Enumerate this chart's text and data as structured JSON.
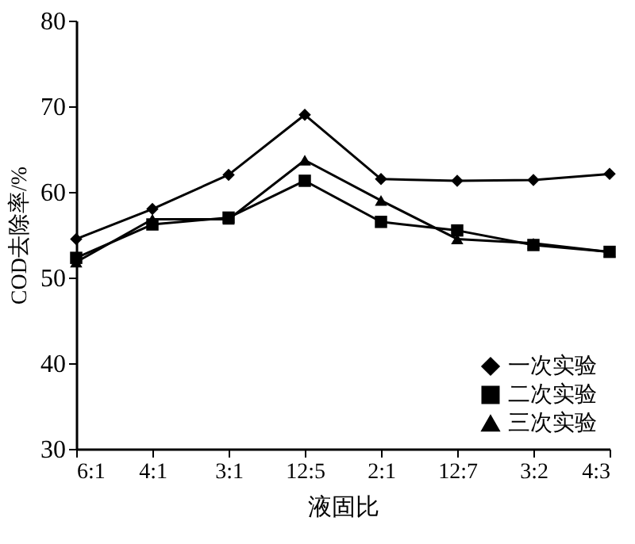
{
  "chart_data": {
    "type": "line",
    "xlabel": "液固比",
    "ylabel": "COD去除率/%",
    "categories": [
      "6:1",
      "4:1",
      "3:1",
      "12:5",
      "2:1",
      "12:7",
      "3:2",
      "4:3"
    ],
    "series": [
      {
        "name": "一次实验",
        "color": "#000000",
        "marker": "diamond",
        "values": [
          54.5,
          58,
          62,
          69,
          61.5,
          61.3,
          61.4,
          62.1
        ]
      },
      {
        "name": "二次实验",
        "color": "#000000",
        "marker": "square",
        "values": [
          52.3,
          56.2,
          57,
          61.3,
          56.5,
          55.5,
          53.8,
          53
        ]
      },
      {
        "name": "三次实验",
        "color": "#000000",
        "marker": "triangle",
        "values": [
          51.8,
          56.8,
          56.8,
          63.7,
          59,
          54.5,
          54,
          53
        ]
      }
    ],
    "ylim": [
      30,
      80
    ],
    "yticks": [
      30,
      40,
      50,
      60,
      70,
      80
    ],
    "grid": false,
    "legend": "bottom right",
    "line_style": "solid"
  }
}
